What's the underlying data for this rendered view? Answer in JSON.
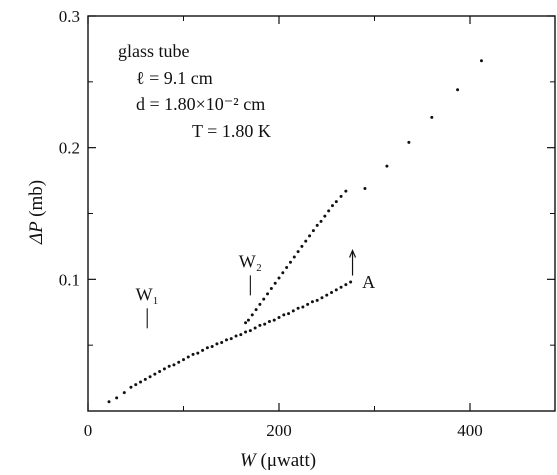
{
  "chart_data": {
    "type": "scatter",
    "xlabel_var": "W",
    "xlabel_unit": "(μwatt)",
    "ylabel_var": "ΔP",
    "ylabel_unit": "(mb)",
    "xlim": [
      0,
      480
    ],
    "ylim": [
      0,
      0.3
    ],
    "x_ticks": [
      0,
      200,
      400
    ],
    "x_tick_labels": [
      "0",
      "200",
      "400"
    ],
    "y_ticks": [
      0.1,
      0.2,
      0.3
    ],
    "y_tick_labels": [
      "0.1",
      "0.2",
      "0.3"
    ],
    "grid": false,
    "annotation_lines": [
      "glass tube",
      "ℓ = 9.1 cm",
      "d = 1.80×10⁻² cm",
      "T = 1.80 K"
    ],
    "markers": [
      {
        "label": "W₁",
        "x": 62,
        "y": 0.078
      },
      {
        "label": "W₂",
        "x": 170,
        "y": 0.103
      },
      {
        "label": "↑",
        "x": 277,
        "y": 0.112
      }
    ],
    "branch_label": {
      "text": "A",
      "x": 287,
      "y": 0.098
    },
    "series": [
      {
        "values": [
          [
            22,
            0.007
          ],
          [
            30,
            0.01
          ],
          [
            38,
            0.014
          ],
          [
            45,
            0.018
          ],
          [
            50,
            0.02
          ],
          [
            55,
            0.022
          ],
          [
            60,
            0.024
          ],
          [
            65,
            0.026
          ],
          [
            70,
            0.028
          ],
          [
            75,
            0.03
          ],
          [
            80,
            0.032
          ],
          [
            85,
            0.034
          ],
          [
            90,
            0.035
          ],
          [
            95,
            0.037
          ],
          [
            100,
            0.039
          ],
          [
            105,
            0.041
          ],
          [
            110,
            0.043
          ],
          [
            115,
            0.044
          ],
          [
            120,
            0.046
          ],
          [
            125,
            0.048
          ],
          [
            130,
            0.049
          ],
          [
            135,
            0.051
          ],
          [
            140,
            0.052
          ],
          [
            145,
            0.054
          ],
          [
            150,
            0.055
          ],
          [
            155,
            0.057
          ],
          [
            160,
            0.058
          ],
          [
            165,
            0.06
          ],
          [
            170,
            0.061
          ],
          [
            175,
            0.063
          ],
          [
            180,
            0.065
          ],
          [
            185,
            0.066
          ],
          [
            190,
            0.068
          ],
          [
            195,
            0.069
          ],
          [
            200,
            0.071
          ],
          [
            205,
            0.073
          ],
          [
            210,
            0.074
          ],
          [
            215,
            0.076
          ],
          [
            220,
            0.078
          ],
          [
            225,
            0.079
          ],
          [
            230,
            0.081
          ],
          [
            235,
            0.083
          ],
          [
            240,
            0.084
          ],
          [
            245,
            0.086
          ],
          [
            250,
            0.088
          ],
          [
            255,
            0.09
          ],
          [
            260,
            0.092
          ],
          [
            265,
            0.094
          ],
          [
            270,
            0.096
          ],
          [
            275,
            0.098
          ]
        ]
      },
      {
        "values": [
          [
            165,
            0.067
          ],
          [
            168,
            0.069
          ],
          [
            172,
            0.073
          ],
          [
            176,
            0.077
          ],
          [
            180,
            0.081
          ],
          [
            184,
            0.085
          ],
          [
            188,
            0.089
          ],
          [
            192,
            0.093
          ],
          [
            196,
            0.097
          ],
          [
            200,
            0.101
          ],
          [
            204,
            0.105
          ],
          [
            208,
            0.109
          ],
          [
            212,
            0.113
          ],
          [
            216,
            0.117
          ],
          [
            220,
            0.121
          ],
          [
            224,
            0.125
          ],
          [
            228,
            0.129
          ],
          [
            232,
            0.133
          ],
          [
            236,
            0.137
          ],
          [
            240,
            0.141
          ],
          [
            244,
            0.144
          ],
          [
            248,
            0.148
          ],
          [
            252,
            0.152
          ],
          [
            256,
            0.156
          ],
          [
            260,
            0.159
          ],
          [
            265,
            0.163
          ],
          [
            270,
            0.167
          ],
          [
            290,
            0.169
          ],
          [
            313,
            0.186
          ],
          [
            336,
            0.204
          ],
          [
            360,
            0.223
          ],
          [
            387,
            0.244
          ],
          [
            412,
            0.266
          ]
        ]
      }
    ]
  }
}
